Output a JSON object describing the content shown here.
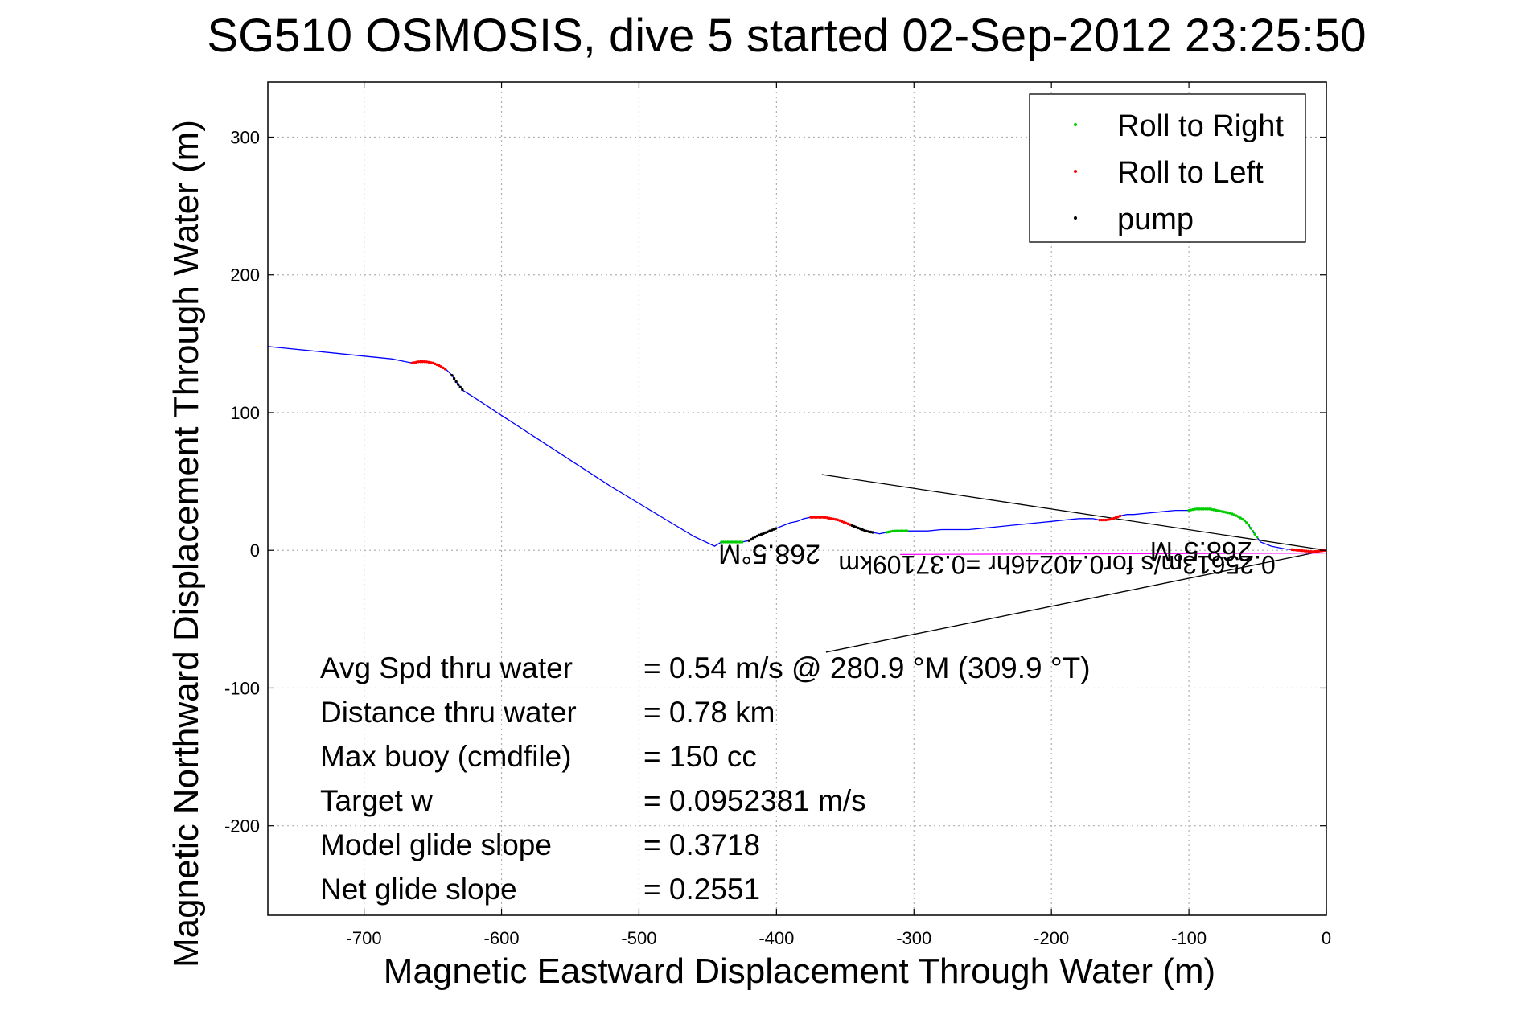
{
  "chart_data": {
    "type": "line",
    "title": "SG510 OSMOSIS, dive 5 started 02-Sep-2012 23:25:50",
    "xlabel": "Magnetic Eastward Displacement Through Water (m)",
    "ylabel": "Magnetic Northward Displacement Through Water (m)",
    "xlim": [
      -770,
      0
    ],
    "ylim": [
      -265,
      340
    ],
    "x_ticks": [
      -700,
      -600,
      -500,
      -400,
      -300,
      -200,
      -100,
      0
    ],
    "y_ticks": [
      -200,
      -100,
      0,
      100,
      200,
      300
    ],
    "x_tick_labels": [
      "-700",
      "-600",
      "-500",
      "-400",
      "-300",
      "-200",
      "-100",
      "0"
    ],
    "y_tick_labels": [
      "-200",
      "-100",
      "0",
      "100",
      "200",
      "300"
    ],
    "grid": true,
    "legend_position": "top-right",
    "legend": [
      {
        "label": "Roll to Right",
        "color": "#00cc00"
      },
      {
        "label": "Roll to Left",
        "color": "#ff0000"
      },
      {
        "label": "pump",
        "color": "#000000"
      }
    ],
    "track": {
      "name": "",
      "color": "#0000ff",
      "x": [
        -770,
        -760,
        -740,
        -720,
        -700,
        -680,
        -665,
        -660,
        -655,
        -650,
        -645,
        -640,
        -636,
        -632,
        -628,
        -620,
        -600,
        -580,
        -560,
        -540,
        -520,
        -500,
        -480,
        -460,
        -445,
        -440,
        -435,
        -430,
        -425,
        -420,
        -415,
        -410,
        -405,
        -400,
        -395,
        -390,
        -385,
        -380,
        -375,
        -370,
        -365,
        -360,
        -355,
        -350,
        -345,
        -340,
        -335,
        -330,
        -325,
        -320,
        -315,
        -310,
        -305,
        -300,
        -290,
        -280,
        -270,
        -260,
        -250,
        -240,
        -230,
        -220,
        -210,
        -200,
        -190,
        -180,
        -170,
        -165,
        -160,
        -155,
        -150,
        -145,
        -140,
        -130,
        -120,
        -110,
        -100,
        -95,
        -90,
        -85,
        -80,
        -75,
        -70,
        -65,
        -60,
        -57,
        -55,
        -53,
        -50,
        -48,
        -40,
        -30,
        -20,
        -10,
        0
      ],
      "y": [
        148,
        147,
        145,
        143,
        141,
        139,
        136,
        137,
        137,
        136,
        134,
        131,
        127,
        121,
        116,
        111,
        98,
        85,
        72,
        59,
        46,
        34,
        22,
        10,
        3,
        6,
        6,
        6,
        6,
        7,
        10,
        12,
        14,
        16,
        18,
        20,
        21,
        23,
        24,
        24,
        24,
        23,
        22,
        20,
        18,
        16,
        14,
        13,
        12,
        13,
        14,
        14,
        14,
        14,
        14,
        15,
        15,
        15,
        16,
        17,
        18,
        19,
        20,
        21,
        22,
        23,
        23,
        22,
        22,
        23,
        25,
        26,
        26,
        27,
        28,
        29,
        29,
        30,
        30,
        30,
        29,
        28,
        27,
        25,
        22,
        19,
        16,
        13,
        9,
        6,
        3,
        1,
        0,
        -1,
        0
      ]
    },
    "roll_right": [
      {
        "x_range": [
          -440,
          -425
        ]
      },
      {
        "x_range": [
          -320,
          -305
        ]
      },
      {
        "x_range": [
          -100,
          -50
        ]
      }
    ],
    "roll_left": [
      {
        "x_range": [
          -665,
          -640
        ]
      },
      {
        "x_range": [
          -375,
          -345
        ]
      },
      {
        "x_range": [
          -165,
          -150
        ]
      },
      {
        "x_range": [
          -25,
          0
        ]
      }
    ],
    "pump": [
      {
        "x_range": [
          -636,
          -628
        ]
      },
      {
        "x_range": [
          -420,
          -400
        ]
      },
      {
        "x_range": [
          -345,
          -330
        ]
      }
    ],
    "reference_lines": [
      {
        "from": [
          -367,
          55
        ],
        "to": [
          0,
          0
        ],
        "color": "#000000"
      },
      {
        "from": [
          -364,
          -74
        ],
        "to": [
          0,
          0
        ],
        "color": "#000000"
      },
      {
        "from": [
          -310,
          -3
        ],
        "to": [
          0,
          -2
        ],
        "color": "#ff00ff"
      }
    ],
    "annotations": [
      {
        "text": "268.5°M",
        "rotation": 180
      },
      {
        "text": "268.5°M",
        "rotation": 180
      },
      {
        "text": "0.25613m/s for0.40246hr =0.37109km",
        "rotation": 180
      }
    ],
    "stats": [
      {
        "label": "Avg Spd thru water",
        "value": "=  0.54 m/s @ 280.9 °M (309.9 °T)"
      },
      {
        "label": "Distance thru water",
        "value": "=  0.78 km"
      },
      {
        "label": "Max buoy (cmdfile)",
        "value": "= 150 cc"
      },
      {
        "label": "Target w",
        "value": "= 0.0952381 m/s"
      },
      {
        "label": "Model glide slope",
        "value": "= 0.3718"
      },
      {
        "label": "Net glide slope",
        "value": "= 0.2551"
      }
    ]
  }
}
